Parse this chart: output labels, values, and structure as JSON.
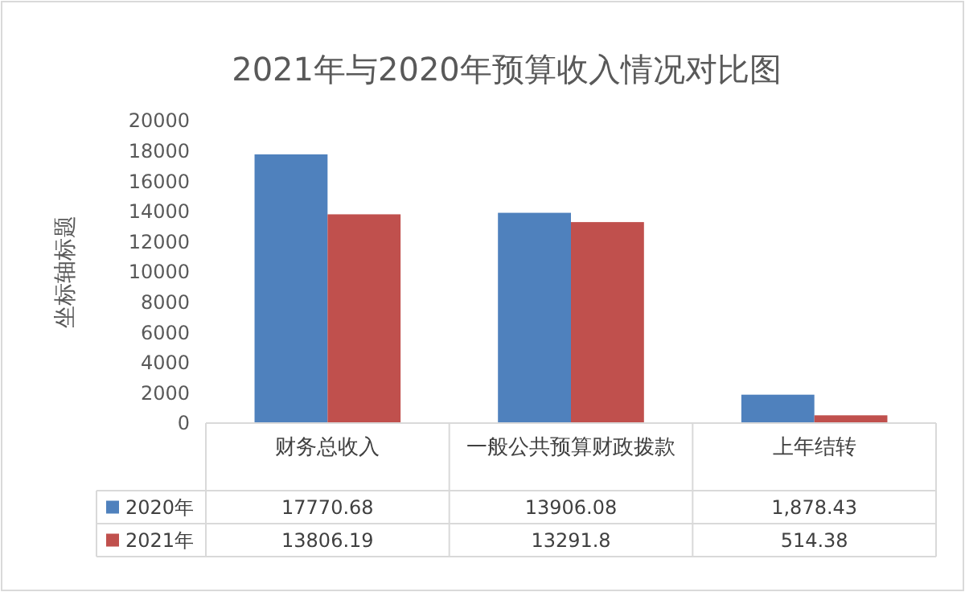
{
  "chart_data": {
    "type": "bar",
    "title": "2021年与2020年预算收入情况对比图",
    "ylabel": "坐标轴标题",
    "categories": [
      "财务总收入",
      "一般公共预算财政拨款",
      "上年结转"
    ],
    "series": [
      {
        "name": "2020年",
        "color": "#4f81bd",
        "values": [
          17770.68,
          13906.08,
          1878.43
        ],
        "value_labels": [
          "17770.68",
          "13906.08",
          "1,878.43"
        ]
      },
      {
        "name": "2021年",
        "color": "#c0504d",
        "values": [
          13806.19,
          13291.8,
          514.38
        ],
        "value_labels": [
          "13806.19",
          "13291.8",
          "514.38"
        ]
      }
    ],
    "ylim": [
      0,
      20000
    ],
    "yticks": [
      0,
      2000,
      4000,
      6000,
      8000,
      10000,
      12000,
      14000,
      16000,
      18000,
      20000
    ],
    "grid": false,
    "legend": "bottom"
  }
}
